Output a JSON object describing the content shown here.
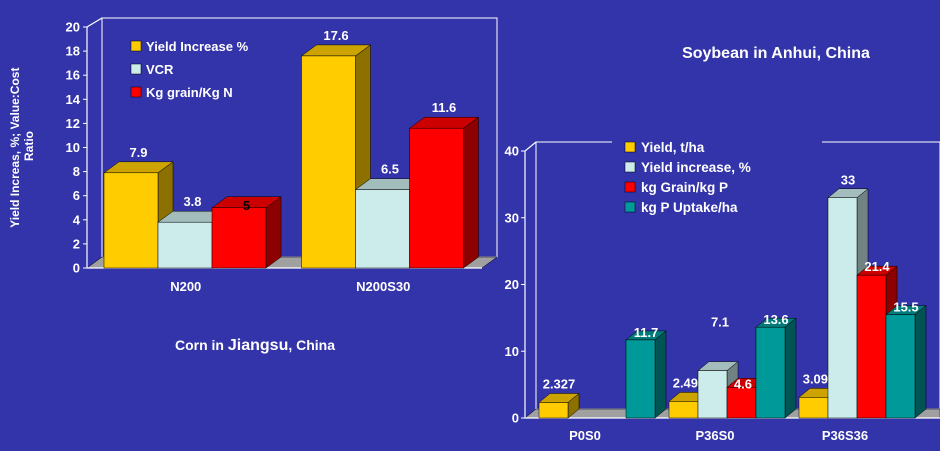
{
  "colors": {
    "background": "#3333aa",
    "yellow": "#ffcc00",
    "lightblue": "#ccecec",
    "red": "#ff0000",
    "teal": "#009999",
    "text": "#ffffff"
  },
  "chart_data": [
    {
      "type": "bar",
      "title": "Corn in Jiangsu, China",
      "title_parts": [
        "Corn in ",
        "Jiangsu",
        ", China"
      ],
      "xlabel": "",
      "ylabel": "Yield Increas, %;   Value:Cost Ratio",
      "ylabel_lines": [
        "Yield Increas, %;   Value:Cost",
        "Ratio"
      ],
      "ylim": [
        0,
        20
      ],
      "yticks": [
        0,
        2,
        4,
        6,
        8,
        10,
        12,
        14,
        16,
        18,
        20
      ],
      "grid": false,
      "legend_position": "top-left",
      "categories": [
        "N200",
        "N200S30"
      ],
      "series": [
        {
          "name": "Yield Increase %",
          "color": "yellow",
          "values": [
            7.9,
            17.6
          ],
          "labels": [
            "7.9",
            "17.6"
          ]
        },
        {
          "name": "VCR",
          "color": "lightblue",
          "values": [
            3.8,
            6.5
          ],
          "labels": [
            "3.8",
            "6.5"
          ]
        },
        {
          "name": "Kg grain/Kg N",
          "color": "red",
          "values": [
            5,
            11.6
          ],
          "labels": [
            "5",
            "11.6"
          ]
        }
      ]
    },
    {
      "type": "bar",
      "title": "Soybean in Anhui, China",
      "xlabel": "",
      "ylabel": "",
      "ylim": [
        0,
        40
      ],
      "yticks": [
        0,
        10,
        20,
        30,
        40
      ],
      "grid": false,
      "legend_position": "top-left",
      "categories": [
        "P0S0",
        "P36S0",
        "P36S36"
      ],
      "series": [
        {
          "name": "Yield, t/ha",
          "color": "yellow",
          "values": [
            2.327,
            2.492,
            3.096
          ],
          "labels": [
            "2.327",
            "2.492",
            "3.096"
          ]
        },
        {
          "name": "Yield increase, %",
          "color": "lightblue",
          "values": [
            null,
            7.1,
            33
          ],
          "labels": [
            null,
            "7.1",
            "33"
          ]
        },
        {
          "name": "kg Grain/kg P",
          "color": "red",
          "values": [
            null,
            4.6,
            21.4
          ],
          "labels": [
            null,
            "4.6",
            "21.4"
          ]
        },
        {
          "name": "kg P Uptake/ha",
          "color": "teal",
          "values": [
            11.7,
            13.6,
            15.5
          ],
          "labels": [
            "11.7",
            "13.6",
            "15.5"
          ]
        }
      ]
    }
  ]
}
